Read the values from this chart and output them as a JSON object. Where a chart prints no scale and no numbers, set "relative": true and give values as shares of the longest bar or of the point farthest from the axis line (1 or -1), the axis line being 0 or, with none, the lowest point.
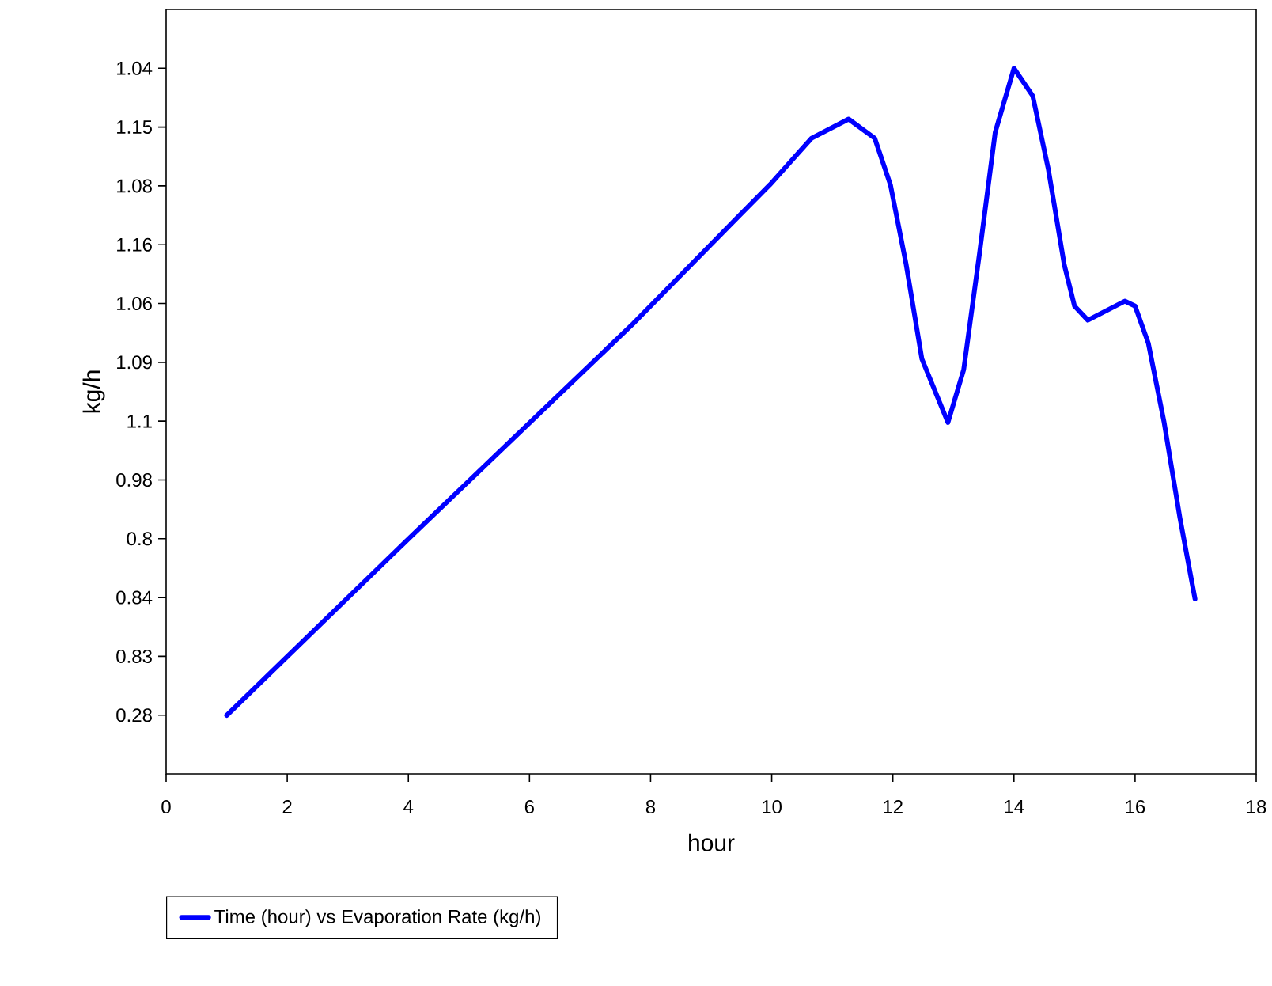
{
  "chart_data": {
    "type": "line",
    "xlabel": "hour",
    "ylabel": "kg/h",
    "xlim": [
      0,
      18
    ],
    "xticks": [
      0,
      2,
      4,
      6,
      8,
      10,
      12,
      14,
      16,
      18
    ],
    "relative": true,
    "annotations": [
      "0.28",
      "0.83",
      "0.84",
      "0.8",
      "0.98",
      "1.1",
      "1.09",
      "1.06",
      "1.16",
      "1.08",
      "1.15",
      "1.04"
    ],
    "grid": false,
    "legend": "bottom left",
    "marker": "none",
    "line_style": "solid",
    "series": [
      {
        "name": "Time (hour) vs Evaporation Rate (kg/h)",
        "color": "#0000ff",
        "x": [
          1,
          4,
          7.71,
          9.45,
          9.97,
          10.66,
          11.27,
          11.7,
          11.96,
          12.22,
          12.48,
          12.91,
          13.17,
          13.43,
          13.69,
          14.0,
          14.31,
          14.57,
          14.83,
          15.0,
          15.22,
          15.83,
          16.0,
          16.22,
          16.48,
          16.74,
          16.99
        ],
        "values": [
          0.083,
          0.333,
          0.638,
          0.79,
          0.835,
          0.901,
          0.928,
          0.901,
          0.835,
          0.722,
          0.588,
          0.498,
          0.573,
          0.737,
          0.909,
          1.0,
          0.961,
          0.856,
          0.722,
          0.663,
          0.643,
          0.67,
          0.663,
          0.61,
          0.498,
          0.363,
          0.248
        ]
      }
    ]
  }
}
